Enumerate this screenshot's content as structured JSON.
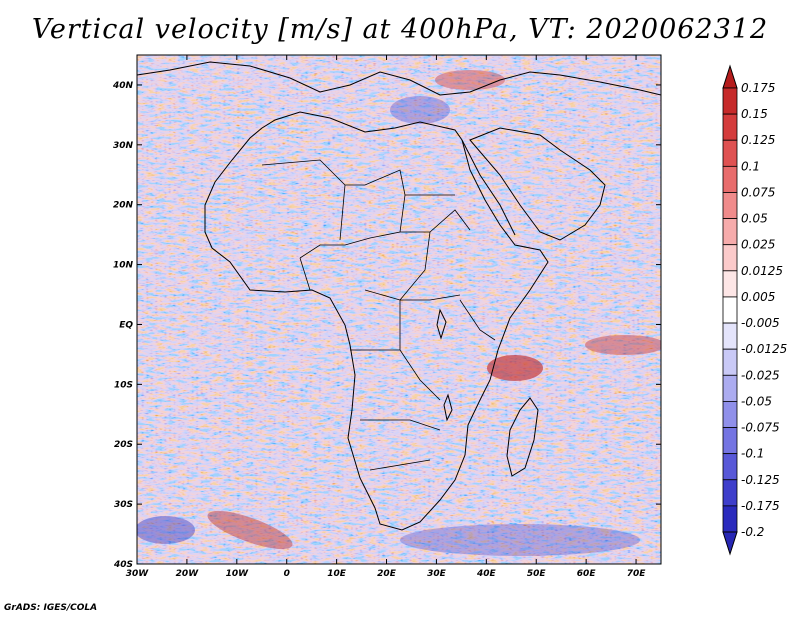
{
  "title": "Vertical velocity [m/s] at 400hPa, VT: 2020062312",
  "credit": "GrADS: IGES/COLA",
  "map": {
    "lon_range": [
      -30,
      75
    ],
    "lat_range": [
      -40,
      45
    ],
    "lon_ticks": [
      {
        "value": -30,
        "label": "30W"
      },
      {
        "value": -20,
        "label": "20W"
      },
      {
        "value": -10,
        "label": "10W"
      },
      {
        "value": 0,
        "label": "0"
      },
      {
        "value": 10,
        "label": "10E"
      },
      {
        "value": 20,
        "label": "20E"
      },
      {
        "value": 30,
        "label": "30E"
      },
      {
        "value": 40,
        "label": "40E"
      },
      {
        "value": 50,
        "label": "50E"
      },
      {
        "value": 60,
        "label": "60E"
      },
      {
        "value": 70,
        "label": "70E"
      }
    ],
    "lat_ticks": [
      {
        "value": 40,
        "label": "40N"
      },
      {
        "value": 30,
        "label": "30N"
      },
      {
        "value": 20,
        "label": "20N"
      },
      {
        "value": 10,
        "label": "10N"
      },
      {
        "value": 0,
        "label": "EQ"
      },
      {
        "value": -10,
        "label": "10S"
      },
      {
        "value": -20,
        "label": "20S"
      },
      {
        "value": -30,
        "label": "30S"
      },
      {
        "value": -40,
        "label": "40S"
      }
    ]
  },
  "colorbar": {
    "levels": [
      {
        "label": "0.175",
        "color": "#b51c1c"
      },
      {
        "label": "0.15",
        "color": "#c62a2a"
      },
      {
        "label": "0.125",
        "color": "#d43c3c"
      },
      {
        "label": "0.1",
        "color": "#df5252"
      },
      {
        "label": "0.075",
        "color": "#e86c6c"
      },
      {
        "label": "0.05",
        "color": "#f08b8b"
      },
      {
        "label": "0.025",
        "color": "#f6abab"
      },
      {
        "label": "0.0125",
        "color": "#fbcaca"
      },
      {
        "label": "0.005",
        "color": "#fde6e6"
      },
      {
        "label": "-0.005",
        "color": "#ffffff"
      },
      {
        "label": "-0.0125",
        "color": "#e4e4fb"
      },
      {
        "label": "-0.025",
        "color": "#c9c9f6"
      },
      {
        "label": "-0.05",
        "color": "#acacf0"
      },
      {
        "label": "-0.075",
        "color": "#9090ea"
      },
      {
        "label": "-0.1",
        "color": "#7474e2"
      },
      {
        "label": "-0.125",
        "color": "#5858d8"
      },
      {
        "label": "-0.175",
        "color": "#3e3ecb"
      },
      {
        "label": "-0.2",
        "color": "#2a2abd"
      }
    ],
    "top_color": "#b51c1c",
    "bottom_color": "#2727b4"
  }
}
